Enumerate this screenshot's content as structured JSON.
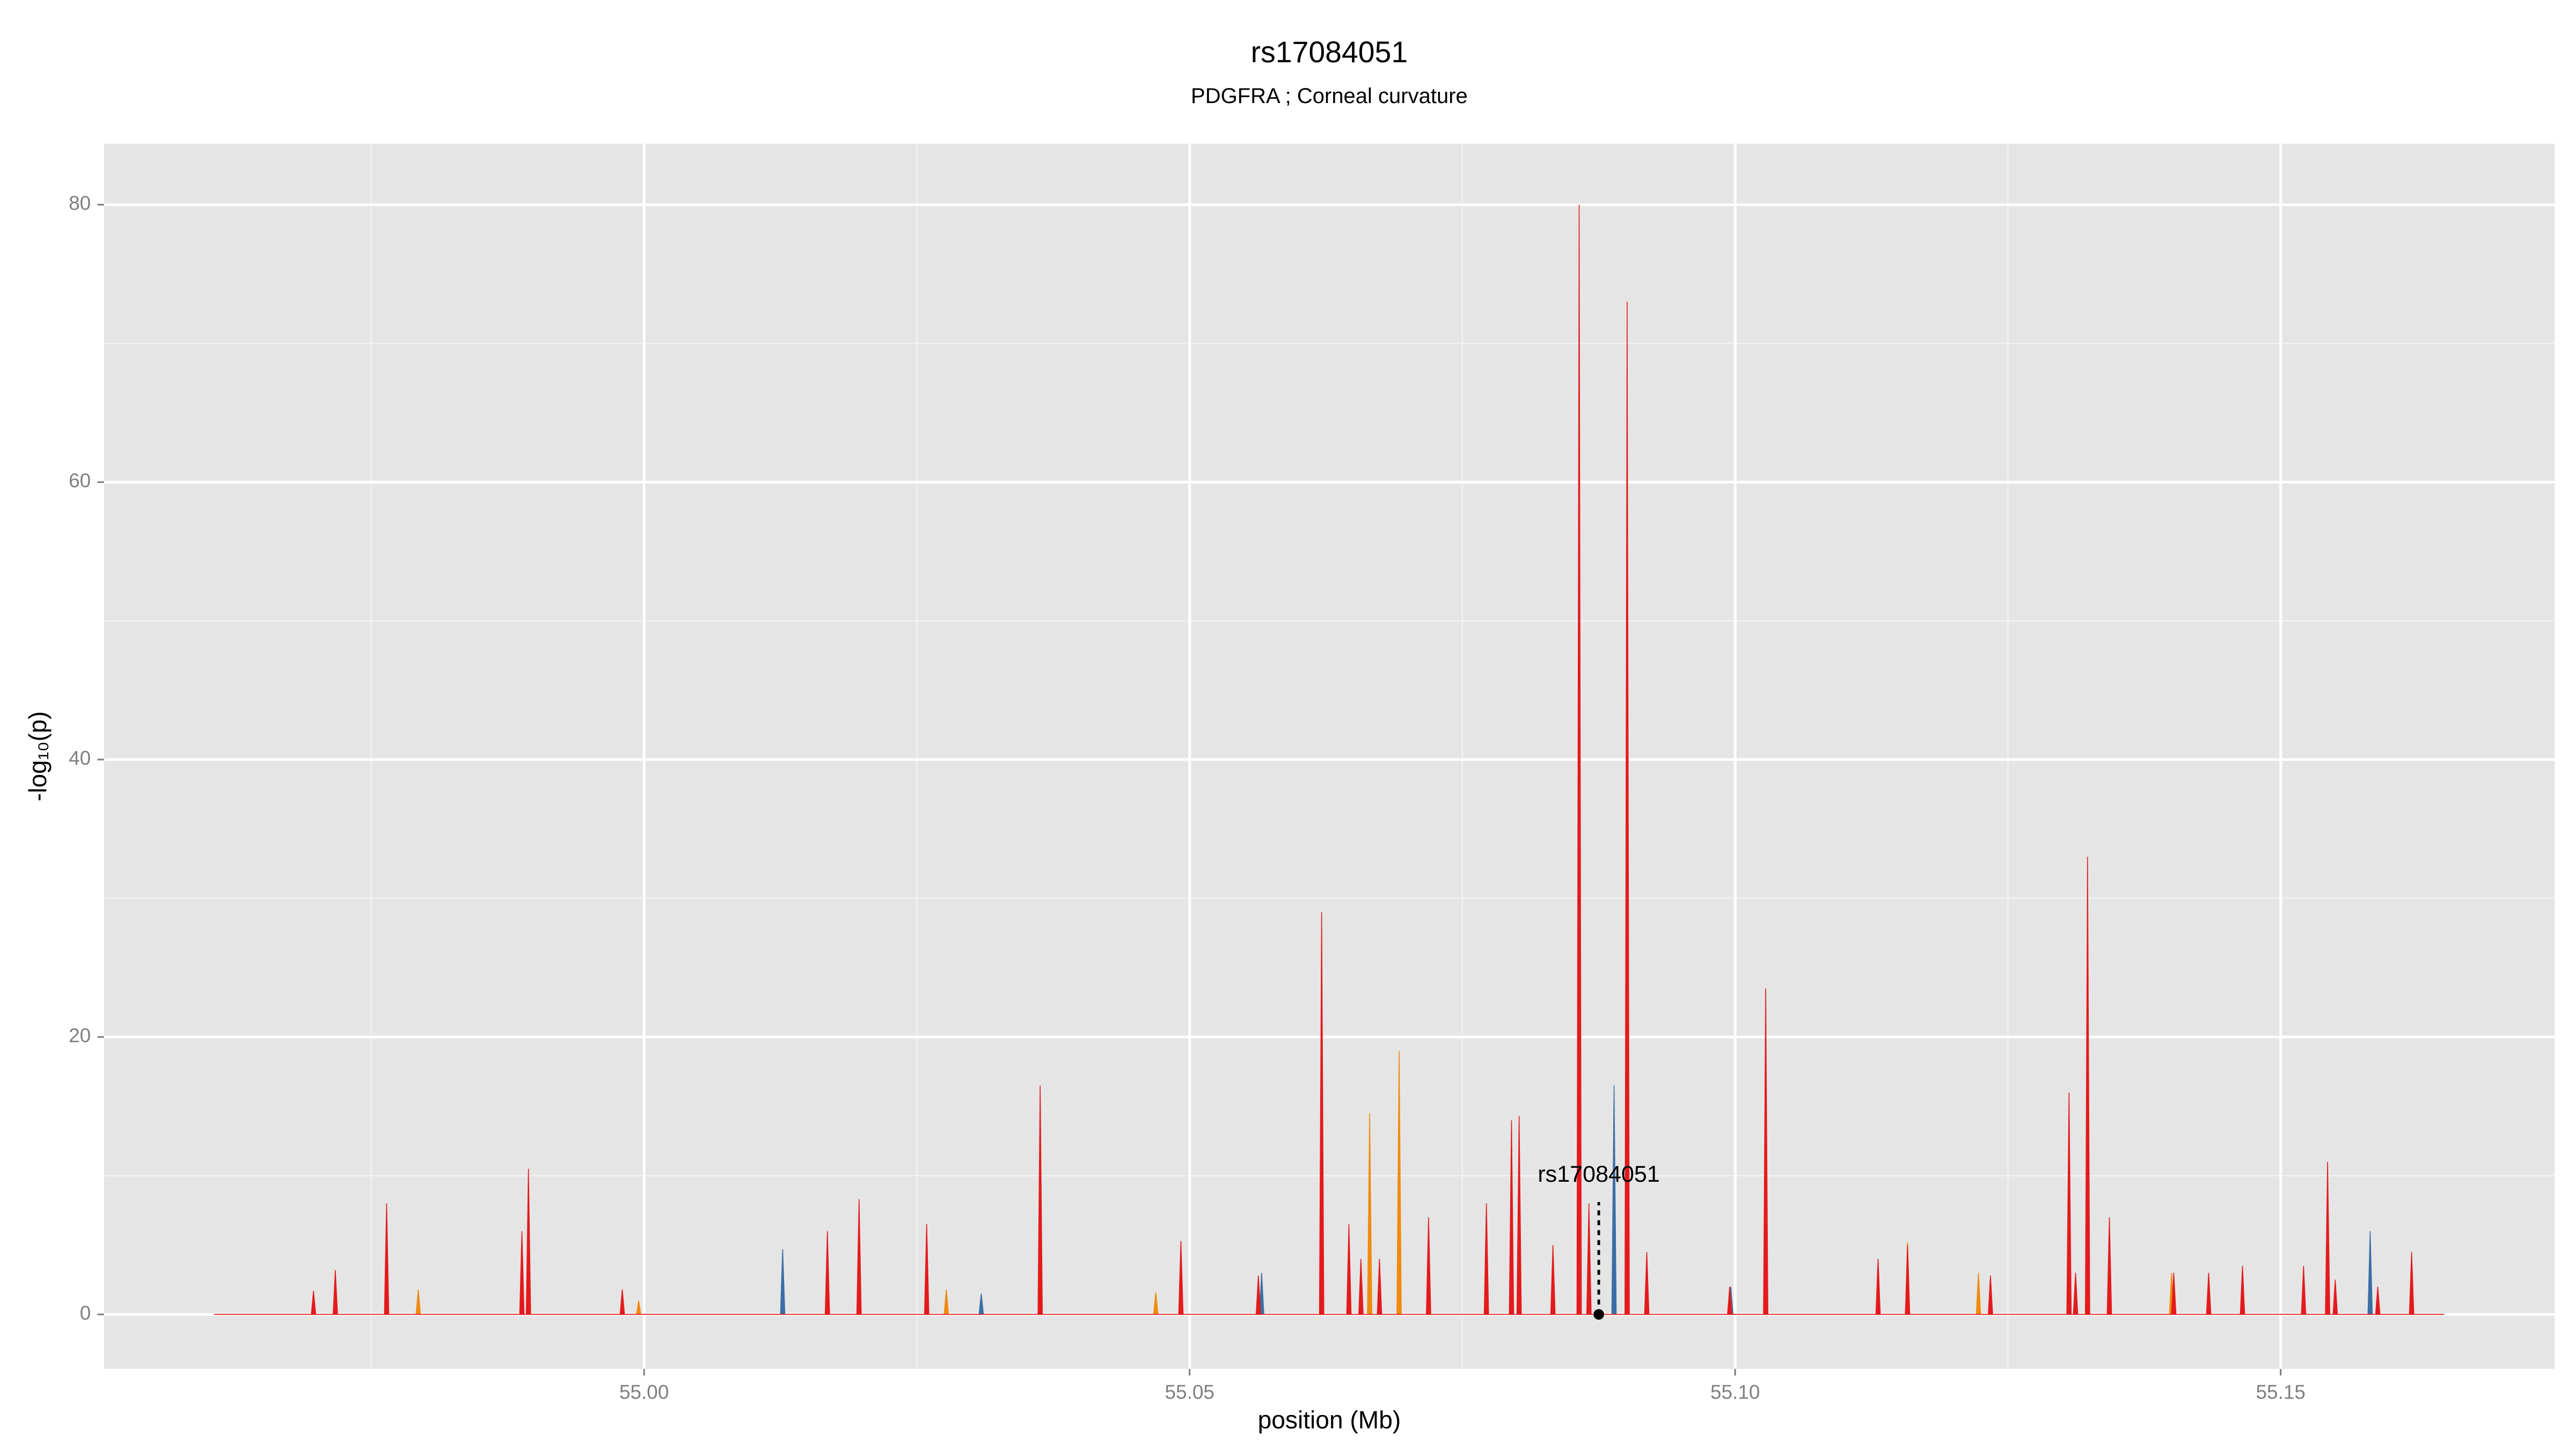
{
  "chart_data": {
    "type": "area",
    "title": "rs17084051",
    "subtitle": "PDGFRA ; Corneal curvature",
    "x_label": "position (Mb)",
    "y_label": "-log₁₀(p)",
    "xlim": [
      54.9505,
      55.1751
    ],
    "ylim": [
      -3.93,
      84.4
    ],
    "xticks": [
      {
        "value": 55,
        "label": "55.00"
      },
      {
        "value": 55.05,
        "label": "55.05"
      },
      {
        "value": 55.1,
        "label": "55.10"
      },
      {
        "value": 55.15,
        "label": "55.15"
      }
    ],
    "yticks": [
      0,
      20,
      40,
      60,
      80
    ],
    "x_minor_grid": [
      54.975,
      55.025,
      55.075,
      55.125
    ],
    "y_minor_grid": [
      10,
      30,
      50,
      70
    ],
    "grid": true,
    "series": [
      {
        "color": "#3a6ea5",
        "x": [
          54.9606,
          55.0125,
          55.0127,
          55.0129,
          55.0307,
          55.0309,
          55.0311,
          55.0564,
          55.0566,
          55.0568,
          55.0887,
          55.0889,
          55.0891,
          55.0994,
          55.0996,
          55.0998,
          55.158,
          55.1582,
          55.1584,
          55.165
        ],
        "values": [
          0,
          0,
          4.7,
          0,
          0,
          1.5,
          0,
          0,
          3,
          0,
          0,
          16.5,
          0,
          0,
          2,
          0,
          0,
          6,
          0,
          0
        ]
      },
      {
        "color": "#f08a0c",
        "x": [
          54.9606,
          54.9791,
          54.9793,
          54.9795,
          54.9993,
          54.9995,
          54.9997,
          55.0275,
          55.0277,
          55.0279,
          55.0467,
          55.0469,
          55.0471,
          55.0663,
          55.0665,
          55.0667,
          55.069,
          55.0692,
          55.0694,
          55.1156,
          55.1158,
          55.116,
          55.1221,
          55.1223,
          55.1225,
          55.1398,
          55.14,
          55.1402,
          55.165
        ],
        "values": [
          0,
          0,
          1.8,
          0,
          0,
          1,
          0,
          0,
          1.8,
          0,
          0,
          1.6,
          0,
          0,
          14.5,
          0,
          0,
          19,
          0,
          0,
          5.2,
          0,
          0,
          3,
          0,
          0,
          3,
          0,
          0
        ]
      },
      {
        "color": "#e41a1c",
        "x": [
          54.9606,
          54.9695,
          54.9697,
          54.9699,
          54.9715,
          54.9717,
          54.9719,
          54.9762,
          54.9764,
          54.9766,
          54.9886,
          54.9888,
          54.989,
          54.9892,
          54.9894,
          54.9896,
          54.9978,
          54.998,
          54.9982,
          55.0166,
          55.0168,
          55.017,
          55.0195,
          55.0197,
          55.0199,
          55.0257,
          55.0259,
          55.0261,
          55.0361,
          55.0363,
          55.0365,
          55.049,
          55.0492,
          55.0494,
          55.0561,
          55.0563,
          55.0565,
          55.0619,
          55.0621,
          55.0623,
          55.0644,
          55.0646,
          55.0648,
          55.0655,
          55.0657,
          55.0659,
          55.0672,
          55.0674,
          55.0676,
          55.0717,
          55.0719,
          55.0721,
          55.077,
          55.0772,
          55.0774,
          55.0793,
          55.0795,
          55.0797,
          55.08,
          55.0802,
          55.0804,
          55.0831,
          55.0833,
          55.0835,
          55.0855,
          55.0857,
          55.0859,
          55.0864,
          55.0866,
          55.0868,
          55.0899,
          55.0901,
          55.0903,
          55.0917,
          55.0919,
          55.0921,
          55.0993,
          55.0995,
          55.0997,
          55.1026,
          55.1028,
          55.103,
          55.1129,
          55.1131,
          55.1133,
          55.1156,
          55.1158,
          55.116,
          55.1232,
          55.1234,
          55.1236,
          55.1304,
          55.1306,
          55.1308,
          55.131,
          55.1312,
          55.1314,
          55.1321,
          55.1323,
          55.1325,
          55.1341,
          55.1343,
          55.1345,
          55.14,
          55.1402,
          55.1404,
          55.1432,
          55.1434,
          55.1436,
          55.1463,
          55.1465,
          55.1467,
          55.1519,
          55.1521,
          55.1523,
          55.1541,
          55.1543,
          55.1545,
          55.1548,
          55.155,
          55.1552,
          55.1587,
          55.1589,
          55.1591,
          55.1618,
          55.162,
          55.1622,
          55.165
        ],
        "values": [
          0,
          0,
          1.7,
          0,
          0,
          3.2,
          0,
          0,
          8,
          0,
          0,
          6,
          0,
          0,
          10.5,
          0,
          0,
          1.8,
          0,
          0,
          6,
          0,
          0,
          8.3,
          0,
          0,
          6.5,
          0,
          0,
          16.5,
          0,
          0,
          5.3,
          0,
          0,
          2.8,
          0,
          0,
          29,
          0,
          0,
          6.5,
          0,
          0,
          4,
          0,
          0,
          4,
          0,
          0,
          7,
          0,
          0,
          8,
          0,
          0,
          14,
          0,
          0,
          14.3,
          0,
          0,
          5,
          0,
          0,
          80,
          0,
          0,
          8,
          0,
          0,
          73,
          0,
          0,
          4.5,
          0,
          0,
          2,
          0,
          0,
          23.5,
          0,
          0,
          4,
          0,
          0,
          5,
          0,
          0,
          2.8,
          0,
          0,
          16,
          0,
          0,
          3,
          0,
          0,
          33,
          0,
          0,
          7,
          0,
          0,
          3,
          0,
          0,
          3,
          0,
          0,
          3.5,
          0,
          0,
          3.5,
          0,
          0,
          11,
          0,
          0,
          2.5,
          0,
          0,
          2,
          0,
          0,
          4.5,
          0,
          0
        ]
      }
    ],
    "annotation": {
      "text": "rs17084051",
      "x": 55.0875,
      "y": 0,
      "line_top": 8.1,
      "text_y": 10
    }
  }
}
